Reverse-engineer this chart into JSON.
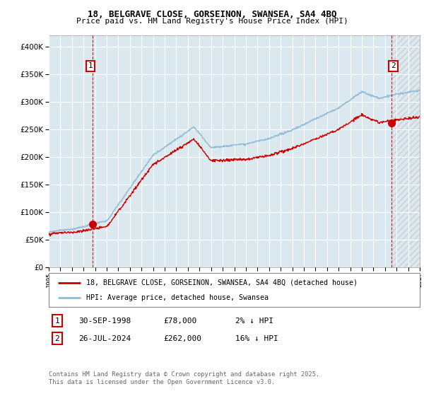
{
  "title_line1": "18, BELGRAVE CLOSE, GORSEINON, SWANSEA, SA4 4BQ",
  "title_line2": "Price paid vs. HM Land Registry's House Price Index (HPI)",
  "legend_label1": "18, BELGRAVE CLOSE, GORSEINON, SWANSEA, SA4 4BQ (detached house)",
  "legend_label2": "HPI: Average price, detached house, Swansea",
  "transaction1": {
    "num": "1",
    "date": "30-SEP-1998",
    "price": "£78,000",
    "hpi_diff": "2% ↓ HPI"
  },
  "transaction2": {
    "num": "2",
    "date": "26-JUL-2024",
    "price": "£262,000",
    "hpi_diff": "16% ↓ HPI"
  },
  "copyright": "Contains HM Land Registry data © Crown copyright and database right 2025.\nThis data is licensed under the Open Government Licence v3.0.",
  "ylim": [
    0,
    420000
  ],
  "yticks": [
    0,
    50000,
    100000,
    150000,
    200000,
    250000,
    300000,
    350000,
    400000
  ],
  "hpi_color": "#91bcd4",
  "price_color": "#cc0000",
  "background_chart": "#dce8f0",
  "grid_color": "#ffffff",
  "x_start_year": 1995,
  "x_end_year": 2027,
  "sale1_year": 1998.75,
  "sale1_price": 78000,
  "sale2_year": 2024.57,
  "sale2_price": 262000
}
